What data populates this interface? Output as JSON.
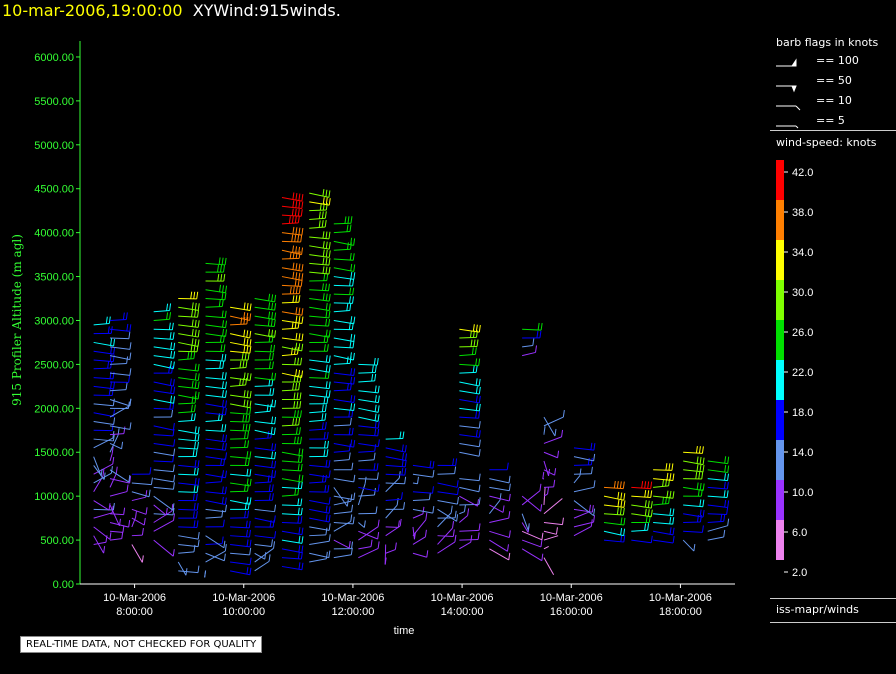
{
  "header": {
    "timestamp": "10-mar-2006,19:00:00",
    "name": "XYWind:915winds."
  },
  "colors": {
    "axis": "#33ff33",
    "text": "#ffffff",
    "timestamp": "#ffff00"
  },
  "legend": {
    "barb_title": "barb flags in knots",
    "barb_flags": [
      "== 100",
      "== 50",
      "== 10",
      "== 5"
    ],
    "speed_title": "wind-speed: knots",
    "speed_ticks": [
      "42.0",
      "38.0",
      "34.0",
      "30.0",
      "26.0",
      "22.0",
      "18.0",
      "14.0",
      "10.0",
      "6.0",
      "2.0"
    ],
    "speed_colors": [
      "#ff0000",
      "#ff7f00",
      "#ffff00",
      "#7fff00",
      "#00e000",
      "#00ffff",
      "#0000ff",
      "#6495ed",
      "#9932ff",
      "#ee82ee"
    ],
    "source": "iss-mapr/winds"
  },
  "notice": "REAL-TIME DATA, NOT CHECKED FOR QUALITY",
  "chart_data": {
    "type": "scatter",
    "subtype": "wind-barbs",
    "xlabel": "time",
    "ylabel": "915 Profiler Altitude (m agl)",
    "ylim": [
      0,
      6250
    ],
    "yticks": [
      "0.00",
      "500.00",
      "1000.00",
      "1500.00",
      "2000.00",
      "2500.00",
      "3000.00",
      "3500.00",
      "4000.00",
      "4500.00",
      "5000.00",
      "5500.00",
      "6000.00"
    ],
    "xticks": [
      {
        "date": "10-Mar-2006",
        "time": "8:00:00",
        "hour": 8
      },
      {
        "date": "10-Mar-2006",
        "time": "10:00:00",
        "hour": 10
      },
      {
        "date": "10-Mar-2006",
        "time": "12:00:00",
        "hour": 12
      },
      {
        "date": "10-Mar-2006",
        "time": "14:00:00",
        "hour": 14
      },
      {
        "date": "10-Mar-2006",
        "time": "16:00:00",
        "hour": 16
      },
      {
        "date": "10-Mar-2006",
        "time": "18:00:00",
        "hour": 18
      }
    ],
    "xlim_hours": [
      7.0,
      19.0
    ],
    "grid": false,
    "profiles": [
      {
        "hour": 7.25,
        "top": 3000,
        "bottom": 450,
        "speed": 14
      },
      {
        "hour": 7.55,
        "top": 3000,
        "bottom": 500,
        "speed": 12
      },
      {
        "hour": 7.95,
        "top": 1300,
        "bottom": 450,
        "speed": 10
      },
      {
        "hour": 8.35,
        "top": 3100,
        "bottom": 500,
        "speed": 16
      },
      {
        "hour": 8.8,
        "top": 3250,
        "bottom": 150,
        "speed": 22
      },
      {
        "hour": 9.3,
        "top": 3700,
        "bottom": 150,
        "speed": 20
      },
      {
        "hour": 9.75,
        "top": 3200,
        "bottom": 150,
        "speed": 26
      },
      {
        "hour": 10.2,
        "top": 3300,
        "bottom": 150,
        "speed": 20
      },
      {
        "hour": 10.7,
        "top": 4400,
        "bottom": 200,
        "speed": 30
      },
      {
        "hour": 11.2,
        "top": 4500,
        "bottom": 250,
        "speed": 22
      },
      {
        "hour": 11.65,
        "top": 4100,
        "bottom": 300,
        "speed": 18
      },
      {
        "hour": 12.1,
        "top": 2500,
        "bottom": 300,
        "speed": 16
      },
      {
        "hour": 12.6,
        "top": 1700,
        "bottom": 350,
        "speed": 14
      },
      {
        "hour": 13.1,
        "top": 1400,
        "bottom": 350,
        "speed": 12
      },
      {
        "hour": 13.55,
        "top": 1350,
        "bottom": 350,
        "speed": 12
      },
      {
        "hour": 13.95,
        "top": 2950,
        "bottom": 1500,
        "speed": 22
      },
      {
        "hour": 13.95,
        "top": 1250,
        "bottom": 400,
        "speed": 10
      },
      {
        "hour": 14.5,
        "top": 1300,
        "bottom": 400,
        "speed": 10
      },
      {
        "hour": 15.1,
        "top": 2900,
        "bottom": 2600,
        "speed": 16
      },
      {
        "hour": 15.1,
        "top": 1000,
        "bottom": 400,
        "speed": 8
      },
      {
        "hour": 15.5,
        "top": 1950,
        "bottom": 300,
        "speed": 8
      },
      {
        "hour": 16.05,
        "top": 1600,
        "bottom": 550,
        "speed": 12
      },
      {
        "hour": 16.6,
        "top": 1100,
        "bottom": 500,
        "speed": 28
      },
      {
        "hour": 17.1,
        "top": 1100,
        "bottom": 500,
        "speed": 28
      },
      {
        "hour": 17.5,
        "top": 1350,
        "bottom": 500,
        "speed": 26
      },
      {
        "hour": 18.05,
        "top": 1550,
        "bottom": 500,
        "speed": 24
      },
      {
        "hour": 18.5,
        "top": 1400,
        "bottom": 500,
        "speed": 18
      }
    ]
  }
}
